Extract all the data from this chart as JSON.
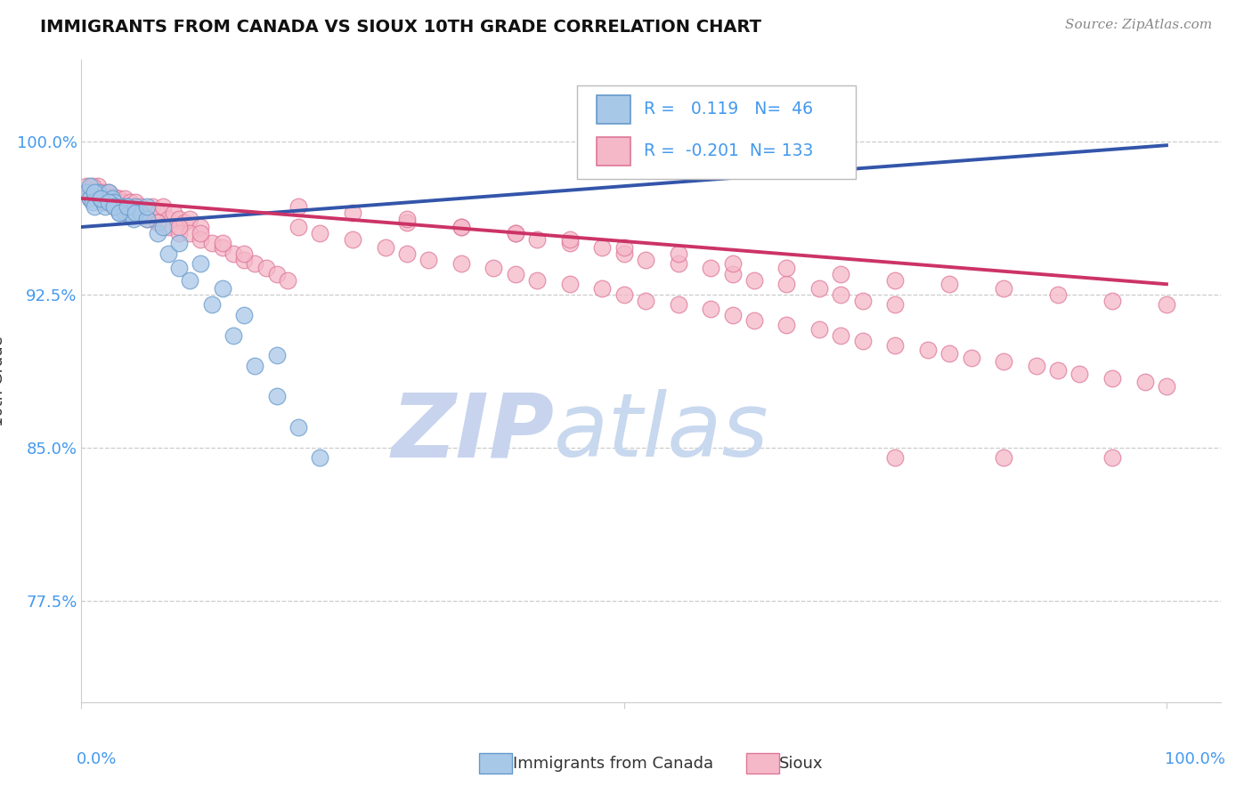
{
  "title": "IMMIGRANTS FROM CANADA VS SIOUX 10TH GRADE CORRELATION CHART",
  "source": "Source: ZipAtlas.com",
  "ylabel": "10th Grade",
  "ytick_labels": [
    "77.5%",
    "85.0%",
    "92.5%",
    "100.0%"
  ],
  "ytick_values": [
    0.775,
    0.85,
    0.925,
    1.0
  ],
  "xlim_min": 0.0,
  "xlim_max": 1.05,
  "ylim_min": 0.725,
  "ylim_max": 1.04,
  "blue_R": 0.119,
  "blue_N": 46,
  "pink_R": -0.201,
  "pink_N": 133,
  "blue_scatter_color": "#a8c8e8",
  "pink_scatter_color": "#f5b8c8",
  "blue_edge_color": "#6699cc",
  "pink_edge_color": "#dd7799",
  "blue_line_color": "#3355aa",
  "pink_line_color": "#cc3366",
  "watermark_zip_color": "#c8d4ee",
  "watermark_atlas_color": "#c8d8ee",
  "background_color": "#ffffff",
  "grid_color": "#cccccc",
  "tick_color": "#4499ee",
  "title_color": "#111111",
  "source_color": "#888888",
  "label_color": "#333333",
  "blue_line_start_y": 0.958,
  "blue_line_end_y": 0.998,
  "pink_line_start_y": 0.972,
  "pink_line_end_y": 0.93,
  "blue_x": [
    0.005,
    0.008,
    0.01,
    0.012,
    0.015,
    0.018,
    0.02,
    0.022,
    0.025,
    0.028,
    0.03,
    0.032,
    0.035,
    0.038,
    0.04,
    0.042,
    0.045,
    0.048,
    0.05,
    0.055,
    0.008,
    0.012,
    0.018,
    0.025,
    0.03,
    0.035,
    0.042,
    0.05,
    0.06,
    0.07,
    0.08,
    0.09,
    0.1,
    0.12,
    0.14,
    0.16,
    0.18,
    0.2,
    0.22,
    0.06,
    0.075,
    0.09,
    0.11,
    0.13,
    0.15,
    0.18
  ],
  "blue_y": [
    0.975,
    0.972,
    0.97,
    0.968,
    0.975,
    0.972,
    0.97,
    0.968,
    0.975,
    0.972,
    0.97,
    0.968,
    0.965,
    0.968,
    0.965,
    0.968,
    0.965,
    0.962,
    0.968,
    0.965,
    0.978,
    0.975,
    0.972,
    0.97,
    0.968,
    0.965,
    0.968,
    0.965,
    0.962,
    0.955,
    0.945,
    0.938,
    0.932,
    0.92,
    0.905,
    0.89,
    0.875,
    0.86,
    0.845,
    0.968,
    0.958,
    0.95,
    0.94,
    0.928,
    0.915,
    0.895
  ],
  "pink_x": [
    0.005,
    0.008,
    0.01,
    0.012,
    0.015,
    0.018,
    0.02,
    0.022,
    0.025,
    0.028,
    0.03,
    0.032,
    0.035,
    0.038,
    0.04,
    0.042,
    0.045,
    0.048,
    0.05,
    0.055,
    0.06,
    0.065,
    0.07,
    0.075,
    0.08,
    0.085,
    0.09,
    0.095,
    0.1,
    0.11,
    0.008,
    0.015,
    0.022,
    0.03,
    0.04,
    0.05,
    0.06,
    0.07,
    0.08,
    0.09,
    0.1,
    0.11,
    0.12,
    0.13,
    0.14,
    0.15,
    0.16,
    0.17,
    0.18,
    0.19,
    0.01,
    0.02,
    0.035,
    0.05,
    0.07,
    0.09,
    0.11,
    0.13,
    0.15,
    0.2,
    0.22,
    0.25,
    0.28,
    0.3,
    0.32,
    0.35,
    0.38,
    0.4,
    0.42,
    0.45,
    0.48,
    0.5,
    0.52,
    0.55,
    0.58,
    0.6,
    0.62,
    0.65,
    0.68,
    0.7,
    0.72,
    0.75,
    0.78,
    0.8,
    0.82,
    0.85,
    0.88,
    0.9,
    0.92,
    0.95,
    0.98,
    1.0,
    0.3,
    0.35,
    0.4,
    0.42,
    0.45,
    0.48,
    0.5,
    0.52,
    0.55,
    0.58,
    0.6,
    0.62,
    0.65,
    0.68,
    0.7,
    0.72,
    0.75,
    0.2,
    0.25,
    0.3,
    0.35,
    0.4,
    0.45,
    0.5,
    0.55,
    0.6,
    0.65,
    0.7,
    0.75,
    0.8,
    0.85,
    0.9,
    0.95,
    1.0,
    0.75,
    0.85,
    0.95
  ],
  "pink_y": [
    0.978,
    0.975,
    0.973,
    0.975,
    0.978,
    0.973,
    0.975,
    0.973,
    0.975,
    0.972,
    0.973,
    0.97,
    0.972,
    0.97,
    0.972,
    0.968,
    0.97,
    0.968,
    0.97,
    0.968,
    0.965,
    0.968,
    0.965,
    0.968,
    0.962,
    0.965,
    0.962,
    0.96,
    0.962,
    0.958,
    0.972,
    0.975,
    0.97,
    0.968,
    0.965,
    0.965,
    0.962,
    0.96,
    0.958,
    0.955,
    0.955,
    0.952,
    0.95,
    0.948,
    0.945,
    0.942,
    0.94,
    0.938,
    0.935,
    0.932,
    0.978,
    0.972,
    0.968,
    0.965,
    0.96,
    0.958,
    0.955,
    0.95,
    0.945,
    0.958,
    0.955,
    0.952,
    0.948,
    0.945,
    0.942,
    0.94,
    0.938,
    0.935,
    0.932,
    0.93,
    0.928,
    0.925,
    0.922,
    0.92,
    0.918,
    0.915,
    0.912,
    0.91,
    0.908,
    0.905,
    0.902,
    0.9,
    0.898,
    0.896,
    0.894,
    0.892,
    0.89,
    0.888,
    0.886,
    0.884,
    0.882,
    0.88,
    0.96,
    0.958,
    0.955,
    0.952,
    0.95,
    0.948,
    0.945,
    0.942,
    0.94,
    0.938,
    0.935,
    0.932,
    0.93,
    0.928,
    0.925,
    0.922,
    0.92,
    0.968,
    0.965,
    0.962,
    0.958,
    0.955,
    0.952,
    0.948,
    0.945,
    0.94,
    0.938,
    0.935,
    0.932,
    0.93,
    0.928,
    0.925,
    0.922,
    0.92,
    0.845,
    0.845,
    0.845
  ]
}
